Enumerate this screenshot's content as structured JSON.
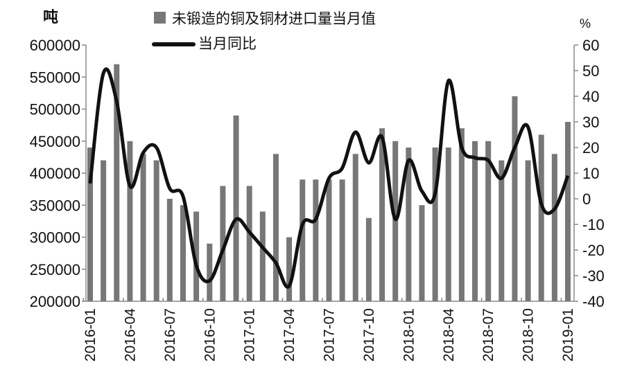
{
  "chart_data": {
    "type": "bar+line",
    "left_unit": "吨",
    "right_unit": "%",
    "ylim_left": [
      200000,
      600000
    ],
    "ylim_right": [
      -40,
      60
    ],
    "left_ticks": [
      "200000",
      "250000",
      "300000",
      "350000",
      "400000",
      "450000",
      "500000",
      "550000",
      "600000"
    ],
    "right_ticks": [
      "-40",
      "-30",
      "-20",
      "-10",
      "0",
      "10",
      "20",
      "30",
      "40",
      "50",
      "60"
    ],
    "x_tick_labels": [
      "2016-01",
      "2016-04",
      "2016-07",
      "2016-10",
      "2017-01",
      "2017-04",
      "2017-07",
      "2017-10",
      "2018-01",
      "2018-04",
      "2018-07",
      "2018-10",
      "2019-01"
    ],
    "legend_position": "top-center",
    "grid": false,
    "categories": [
      "2016-01",
      "2016-02",
      "2016-03",
      "2016-04",
      "2016-05",
      "2016-06",
      "2016-07",
      "2016-08",
      "2016-09",
      "2016-10",
      "2016-11",
      "2016-12",
      "2017-01",
      "2017-02",
      "2017-03",
      "2017-04",
      "2017-05",
      "2017-06",
      "2017-07",
      "2017-08",
      "2017-09",
      "2017-10",
      "2017-11",
      "2017-12",
      "2018-01",
      "2018-02",
      "2018-03",
      "2018-04",
      "2018-05",
      "2018-06",
      "2018-07",
      "2018-08",
      "2018-09",
      "2018-10",
      "2018-11",
      "2018-12",
      "2019-01"
    ],
    "series": [
      {
        "name": "未锻造的铜及铜材进口量当月值",
        "type": "bar",
        "axis": "left",
        "color": "#777777",
        "values": [
          440000,
          420000,
          570000,
          450000,
          430000,
          420000,
          360000,
          350000,
          340000,
          290000,
          380000,
          490000,
          380000,
          340000,
          430000,
          300000,
          390000,
          390000,
          390000,
          390000,
          430000,
          330000,
          470000,
          450000,
          440000,
          350000,
          440000,
          440000,
          470000,
          450000,
          450000,
          420000,
          520000,
          420000,
          460000,
          430000,
          480000
        ]
      },
      {
        "name": "当月同比",
        "type": "line",
        "axis": "right",
        "color": "#111111",
        "values": [
          6,
          49,
          38,
          5,
          18,
          20,
          4,
          1,
          -26,
          -32,
          -20,
          -8,
          -13,
          -19,
          -25,
          -34,
          -10,
          -8,
          8,
          12,
          26,
          14,
          24,
          -8,
          15,
          3,
          2,
          46,
          20,
          16,
          15,
          8,
          20,
          28,
          -2,
          -4,
          9
        ]
      }
    ]
  }
}
